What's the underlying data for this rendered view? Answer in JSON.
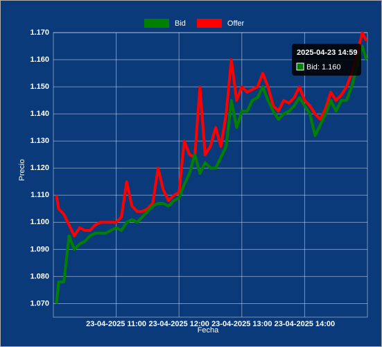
{
  "chart_data": {
    "type": "line",
    "x_label": "Fecha",
    "y_label": "Precio",
    "x": [
      "2025-04-23 10:03",
      "2025-04-23 10:05",
      "2025-04-23 10:10",
      "2025-04-23 10:15",
      "2025-04-23 10:20",
      "2025-04-23 10:25",
      "2025-04-23 10:30",
      "2025-04-23 10:35",
      "2025-04-23 10:40",
      "2025-04-23 10:45",
      "2025-04-23 10:50",
      "2025-04-23 10:55",
      "2025-04-23 11:00",
      "2025-04-23 11:05",
      "2025-04-23 11:10",
      "2025-04-23 11:15",
      "2025-04-23 11:20",
      "2025-04-23 11:25",
      "2025-04-23 11:30",
      "2025-04-23 11:35",
      "2025-04-23 11:40",
      "2025-04-23 11:45",
      "2025-04-23 11:50",
      "2025-04-23 11:55",
      "2025-04-23 12:00",
      "2025-04-23 12:05",
      "2025-04-23 12:10",
      "2025-04-23 12:15",
      "2025-04-23 12:20",
      "2025-04-23 12:25",
      "2025-04-23 12:30",
      "2025-04-23 12:35",
      "2025-04-23 12:40",
      "2025-04-23 12:45",
      "2025-04-23 12:50",
      "2025-04-23 12:55",
      "2025-04-23 13:00",
      "2025-04-23 13:05",
      "2025-04-23 13:10",
      "2025-04-23 13:15",
      "2025-04-23 13:20",
      "2025-04-23 13:25",
      "2025-04-23 13:30",
      "2025-04-23 13:35",
      "2025-04-23 13:40",
      "2025-04-23 13:45",
      "2025-04-23 13:50",
      "2025-04-23 13:55",
      "2025-04-23 14:00",
      "2025-04-23 14:05",
      "2025-04-23 14:10",
      "2025-04-23 14:15",
      "2025-04-23 14:20",
      "2025-04-23 14:25",
      "2025-04-23 14:30",
      "2025-04-23 14:35",
      "2025-04-23 14:40",
      "2025-04-23 14:45",
      "2025-04-23 14:50",
      "2025-04-23 14:55",
      "2025-04-23 14:59"
    ],
    "series": [
      {
        "name": "Bid",
        "color": "#008000",
        "values": [
          1.07,
          1.078,
          1.078,
          1.095,
          1.09,
          1.092,
          1.093,
          1.095,
          1.096,
          1.096,
          1.096,
          1.097,
          1.098,
          1.097,
          1.1,
          1.101,
          1.1,
          1.102,
          1.104,
          1.106,
          1.107,
          1.107,
          1.106,
          1.108,
          1.109,
          1.114,
          1.118,
          1.125,
          1.118,
          1.122,
          1.12,
          1.12,
          1.124,
          1.128,
          1.145,
          1.135,
          1.141,
          1.141,
          1.145,
          1.146,
          1.15,
          1.145,
          1.141,
          1.138,
          1.14,
          1.141,
          1.143,
          1.146,
          1.143,
          1.14,
          1.132,
          1.136,
          1.14,
          1.145,
          1.141,
          1.145,
          1.145,
          1.15,
          1.158,
          1.165,
          1.16
        ]
      },
      {
        "name": "Offer",
        "color": "#ff0000",
        "values": [
          1.11,
          1.105,
          1.103,
          1.099,
          1.095,
          1.098,
          1.097,
          1.097,
          1.099,
          1.1,
          1.1,
          1.1,
          1.1,
          1.102,
          1.115,
          1.106,
          1.104,
          1.104,
          1.105,
          1.107,
          1.12,
          1.112,
          1.108,
          1.11,
          1.111,
          1.13,
          1.125,
          1.124,
          1.15,
          1.125,
          1.128,
          1.135,
          1.128,
          1.14,
          1.16,
          1.145,
          1.15,
          1.148,
          1.149,
          1.15,
          1.155,
          1.15,
          1.143,
          1.141,
          1.145,
          1.144,
          1.146,
          1.15,
          1.145,
          1.143,
          1.14,
          1.138,
          1.142,
          1.148,
          1.145,
          1.147,
          1.15,
          1.155,
          1.162,
          1.17,
          1.167
        ]
      }
    ],
    "xlim": [
      "2025-04-23 10:00",
      "2025-04-23 15:00"
    ],
    "xticks": [
      {
        "value": "2025-04-23 11:00",
        "label": "23-04-2025 11:00"
      },
      {
        "value": "2025-04-23 12:00",
        "label": "23-04-2025 12:00"
      },
      {
        "value": "2025-04-23 13:00",
        "label": "23-04-2025 13:00"
      },
      {
        "value": "2025-04-23 14:00",
        "label": "23-04-2025 14:00"
      }
    ],
    "ylim": [
      1.065,
      1.17
    ],
    "yticks": [
      {
        "value": 1.07,
        "label": "1.070"
      },
      {
        "value": 1.08,
        "label": "1.080"
      },
      {
        "value": 1.09,
        "label": "1.090"
      },
      {
        "value": 1.1,
        "label": "1.100"
      },
      {
        "value": 1.11,
        "label": "1.110"
      },
      {
        "value": 1.12,
        "label": "1.120"
      },
      {
        "value": 1.13,
        "label": "1.130"
      },
      {
        "value": 1.14,
        "label": "1.140"
      },
      {
        "value": 1.15,
        "label": "1.150"
      },
      {
        "value": 1.16,
        "label": "1.160"
      },
      {
        "value": 1.17,
        "label": "1.170"
      }
    ],
    "grid": true,
    "legend": "top"
  },
  "tooltip": {
    "title": "2025-04-23 14:59",
    "label": "Bid: 1.160"
  }
}
